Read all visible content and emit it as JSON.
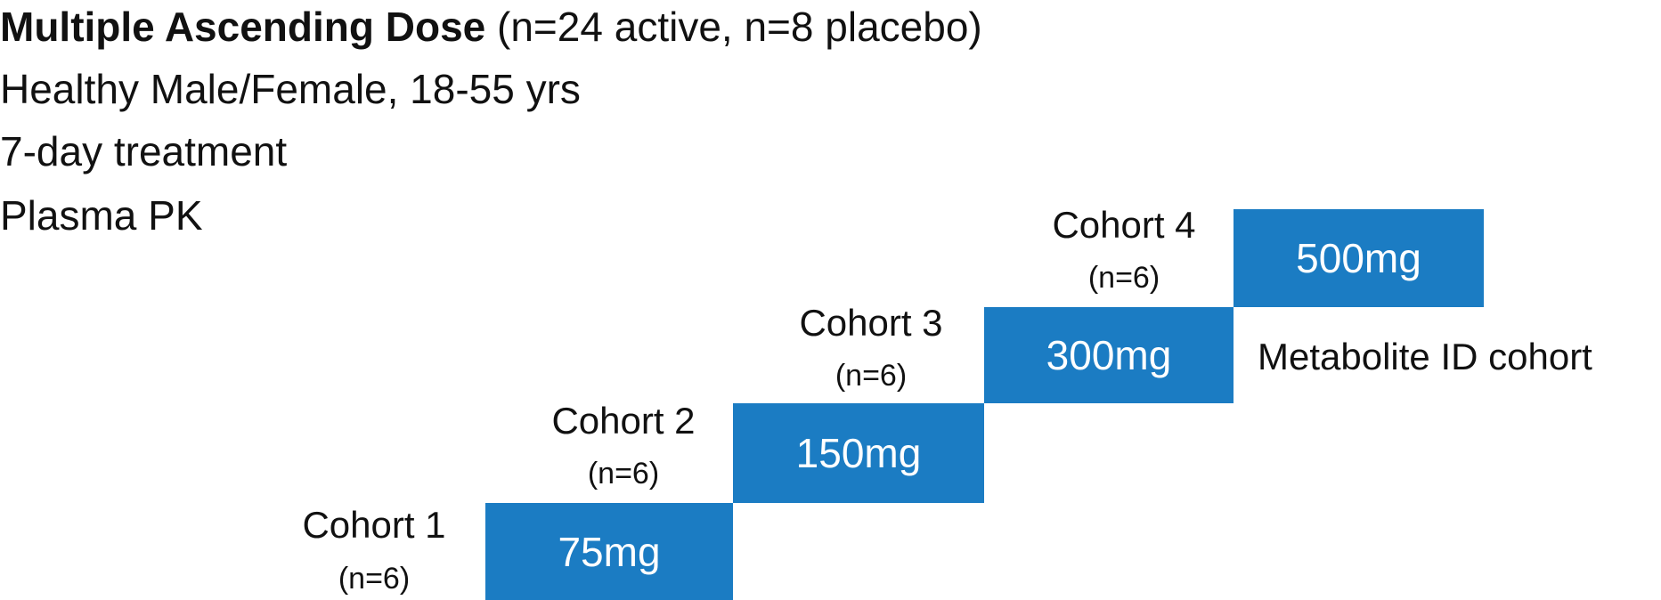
{
  "header": {
    "title": "Multiple Ascending Dose",
    "title_note": "(n=24 active, n=8 placebo)",
    "lines": [
      "Healthy Male/Female, 18-55 yrs",
      "7-day treatment",
      "Plasma PK"
    ]
  },
  "cohorts": [
    {
      "label": "Cohort 1",
      "n": "(n=6)",
      "dose": "75mg"
    },
    {
      "label": "Cohort 2",
      "n": "(n=6)",
      "dose": "150mg"
    },
    {
      "label": "Cohort 3",
      "n": "(n=6)",
      "dose": "300mg"
    },
    {
      "label": "Cohort 4",
      "n": "(n=6)",
      "dose": "500mg"
    }
  ],
  "annotation": "Metabolite ID cohort"
}
